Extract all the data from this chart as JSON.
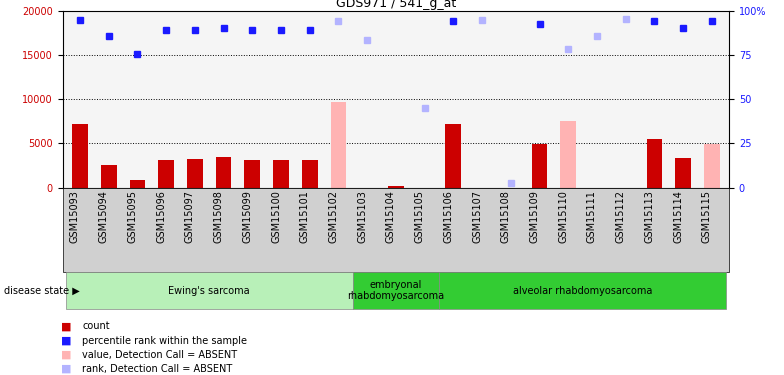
{
  "title": "GDS971 / 541_g_at",
  "samples": [
    "GSM15093",
    "GSM15094",
    "GSM15095",
    "GSM15096",
    "GSM15097",
    "GSM15098",
    "GSM15099",
    "GSM15100",
    "GSM15101",
    "GSM15102",
    "GSM15103",
    "GSM15104",
    "GSM15105",
    "GSM15106",
    "GSM15107",
    "GSM15108",
    "GSM15109",
    "GSM15110",
    "GSM15111",
    "GSM15112",
    "GSM15113",
    "GSM15114",
    "GSM15115"
  ],
  "count_values": [
    7200,
    2500,
    900,
    3100,
    3200,
    3500,
    3100,
    3100,
    3100,
    null,
    null,
    200,
    null,
    7200,
    null,
    null,
    4900,
    null,
    null,
    null,
    5500,
    3300,
    null
  ],
  "count_absent": [
    null,
    null,
    null,
    null,
    null,
    null,
    null,
    null,
    null,
    9700,
    null,
    null,
    null,
    null,
    null,
    null,
    null,
    7600,
    null,
    null,
    null,
    null,
    4900
  ],
  "rank_values": [
    19000,
    17200,
    15100,
    17900,
    17900,
    18100,
    17900,
    17900,
    17900,
    null,
    null,
    null,
    null,
    18900,
    null,
    null,
    18500,
    null,
    null,
    null,
    18900,
    18100,
    18900
  ],
  "rank_absent": [
    null,
    null,
    null,
    null,
    null,
    null,
    null,
    null,
    null,
    18900,
    16700,
    null,
    9000,
    null,
    19000,
    500,
    null,
    15700,
    17200,
    19100,
    null,
    null,
    null
  ],
  "disease_groups": [
    {
      "label": "Ewing's sarcoma",
      "start": 0,
      "end": 10,
      "light": true
    },
    {
      "label": "embryonal\nrhabdomyosarcoma",
      "start": 10,
      "end": 13,
      "light": false
    },
    {
      "label": "alveolar rhabdomyosarcoma",
      "start": 13,
      "end": 23,
      "light": false
    }
  ],
  "ylim_left": [
    0,
    20000
  ],
  "ylim_right": [
    0,
    100
  ],
  "yticks_left": [
    0,
    5000,
    10000,
    15000,
    20000
  ],
  "yticks_right": [
    0,
    25,
    50,
    75,
    100
  ],
  "dotted_lines": [
    5000,
    10000,
    15000
  ],
  "bar_color_present": "#cc0000",
  "bar_color_absent": "#ffb3b3",
  "dot_color_present": "#1a1aff",
  "dot_color_absent": "#b3b3ff",
  "plot_bg": "#f5f5f5",
  "xtick_bg": "#d0d0d0",
  "group_color_light": "#b8f0b8",
  "group_color_dark": "#33cc33",
  "title_fontsize": 9,
  "axis_fontsize": 7,
  "legend_fontsize": 7
}
